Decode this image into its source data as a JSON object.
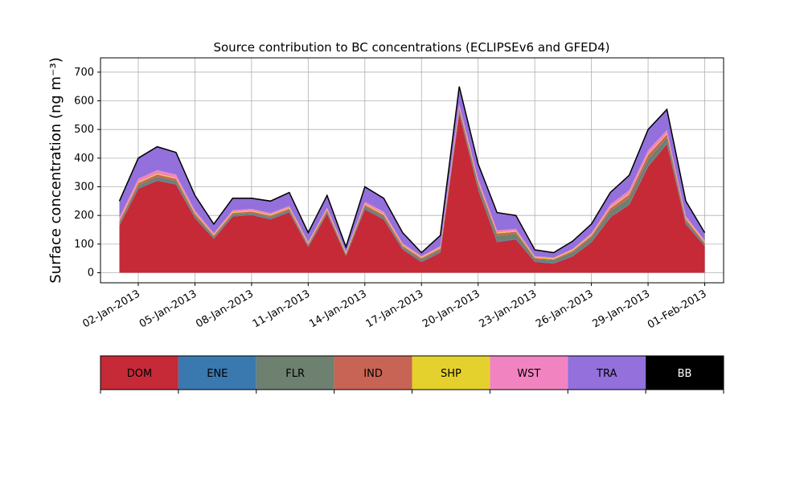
{
  "chart_data": {
    "type": "stacked_area",
    "title": "Source contribution to BC concentrations (ECLIPSEv6 and GFED4)",
    "y_label": "Surface concentration (ng m⁻³)",
    "x": [
      "2013-01-01",
      "2013-01-02",
      "2013-01-03",
      "2013-01-04",
      "2013-01-05",
      "2013-01-06",
      "2013-01-07",
      "2013-01-08",
      "2013-01-09",
      "2013-01-10",
      "2013-01-11",
      "2013-01-12",
      "2013-01-13",
      "2013-01-14",
      "2013-01-15",
      "2013-01-16",
      "2013-01-17",
      "2013-01-18",
      "2013-01-19",
      "2013-01-20",
      "2013-01-21",
      "2013-01-22",
      "2013-01-23",
      "2013-01-24",
      "2013-01-25",
      "2013-01-26",
      "2013-01-27",
      "2013-01-28",
      "2013-01-29",
      "2013-01-30",
      "2013-01-31",
      "2013-02-01"
    ],
    "series": [
      {
        "name": "DOM",
        "color": "#c62a37",
        "values": [
          164,
          293,
          321,
          308,
          191,
          118,
          196,
          201,
          186,
          211,
          89,
          206,
          58,
          221,
          186,
          81,
          37,
          70,
          555,
          290,
          107,
          116,
          38,
          32,
          57,
          106,
          193,
          237,
          370,
          449,
          169,
          93
        ]
      },
      {
        "name": "ENE",
        "color": "#3a78b0",
        "values": [
          2,
          2,
          2,
          2,
          2,
          2,
          2,
          2,
          2,
          2,
          2,
          2,
          2,
          2,
          2,
          2,
          2,
          2,
          2,
          2,
          2,
          2,
          2,
          2,
          2,
          2,
          2,
          2,
          2,
          2,
          2,
          2
        ]
      },
      {
        "name": "FLR",
        "color": "#6e8070",
        "values": [
          8,
          10,
          12,
          10,
          8,
          6,
          6,
          6,
          6,
          6,
          5,
          6,
          4,
          8,
          8,
          6,
          8,
          8,
          10,
          15,
          20,
          18,
          8,
          10,
          12,
          15,
          20,
          22,
          25,
          20,
          10,
          6
        ]
      },
      {
        "name": "IND",
        "color": "#c86455",
        "values": [
          6,
          8,
          8,
          8,
          6,
          4,
          5,
          5,
          5,
          5,
          4,
          5,
          3,
          6,
          6,
          5,
          4,
          5,
          8,
          8,
          8,
          7,
          4,
          3,
          5,
          6,
          10,
          12,
          14,
          12,
          6,
          4
        ]
      },
      {
        "name": "SHP",
        "color": "#e5d12e",
        "values": [
          3,
          3,
          3,
          3,
          3,
          3,
          3,
          3,
          3,
          3,
          3,
          3,
          3,
          3,
          3,
          3,
          3,
          3,
          3,
          3,
          3,
          3,
          3,
          3,
          3,
          3,
          3,
          3,
          3,
          3,
          3,
          3
        ]
      },
      {
        "name": "WST",
        "color": "#f184c0",
        "values": [
          10,
          12,
          12,
          12,
          8,
          5,
          6,
          6,
          6,
          6,
          5,
          6,
          3,
          8,
          8,
          6,
          4,
          5,
          10,
          10,
          8,
          7,
          3,
          3,
          4,
          6,
          10,
          12,
          14,
          12,
          8,
          5
        ]
      },
      {
        "name": "TRA",
        "color": "#9370db",
        "values": [
          55,
          70,
          80,
          75,
          50,
          30,
          40,
          35,
          40,
          45,
          30,
          40,
          15,
          50,
          45,
          35,
          10,
          35,
          60,
          50,
          60,
          45,
          20,
          15,
          25,
          30,
          40,
          50,
          70,
          70,
          50,
          25
        ]
      },
      {
        "name": "BB",
        "color": "#000000",
        "values": [
          2,
          2,
          2,
          2,
          2,
          2,
          2,
          2,
          2,
          2,
          2,
          2,
          2,
          2,
          2,
          2,
          2,
          2,
          2,
          2,
          2,
          2,
          2,
          2,
          2,
          2,
          2,
          2,
          2,
          2,
          2,
          2
        ]
      }
    ],
    "xlim": [
      "2012-12-31",
      "2013-02-02"
    ],
    "xticks": [
      {
        "value": "2013-01-02",
        "label": "02-Jan-2013"
      },
      {
        "value": "2013-01-05",
        "label": "05-Jan-2013"
      },
      {
        "value": "2013-01-08",
        "label": "08-Jan-2013"
      },
      {
        "value": "2013-01-11",
        "label": "11-Jan-2013"
      },
      {
        "value": "2013-01-14",
        "label": "14-Jan-2013"
      },
      {
        "value": "2013-01-17",
        "label": "17-Jan-2013"
      },
      {
        "value": "2013-01-20",
        "label": "20-Jan-2013"
      },
      {
        "value": "2013-01-23",
        "label": "23-Jan-2013"
      },
      {
        "value": "2013-01-26",
        "label": "26-Jan-2013"
      },
      {
        "value": "2013-01-29",
        "label": "29-Jan-2013"
      },
      {
        "value": "2013-02-01",
        "label": "01-Feb-2013"
      }
    ],
    "ylim": [
      -35,
      750
    ],
    "yticks": [
      0,
      100,
      200,
      300,
      400,
      500,
      600,
      700
    ],
    "grid": true
  }
}
